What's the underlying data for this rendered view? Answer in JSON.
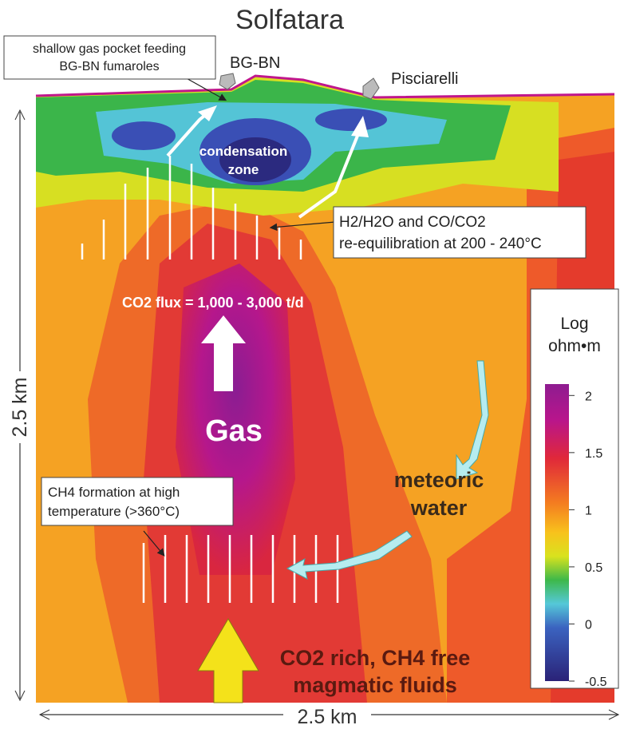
{
  "title": "Solfatara",
  "labels": {
    "gas_pocket": [
      "shallow gas pocket feeding",
      "BG-BN fumaroles"
    ],
    "bg_bn": "BG-BN",
    "pisciarelli": "Pisciarelli",
    "condensation": [
      "condensation",
      "zone"
    ],
    "reequilibration": [
      "H2/H2O and CO/CO2",
      "re-equilibration at 200 - 240°C"
    ],
    "co2_flux": "CO2 flux = 1,000 - 3,000 t/d",
    "gas": "Gas",
    "meteoric": [
      "meteoric",
      "water"
    ],
    "ch4_formation": [
      "CH4 formation at high",
      "temperature (>360°C)"
    ],
    "magmatic": [
      "CO2 rich, CH4 free",
      "magmatic fluids"
    ],
    "depth": "2.5 km",
    "width": "2.5 km"
  },
  "colorbar": {
    "title": [
      "Log",
      "ohm•m"
    ],
    "lim": [
      -0.5,
      2.1
    ],
    "ticks": [
      2,
      1.5,
      1,
      0.5,
      0,
      -0.5
    ]
  }
}
